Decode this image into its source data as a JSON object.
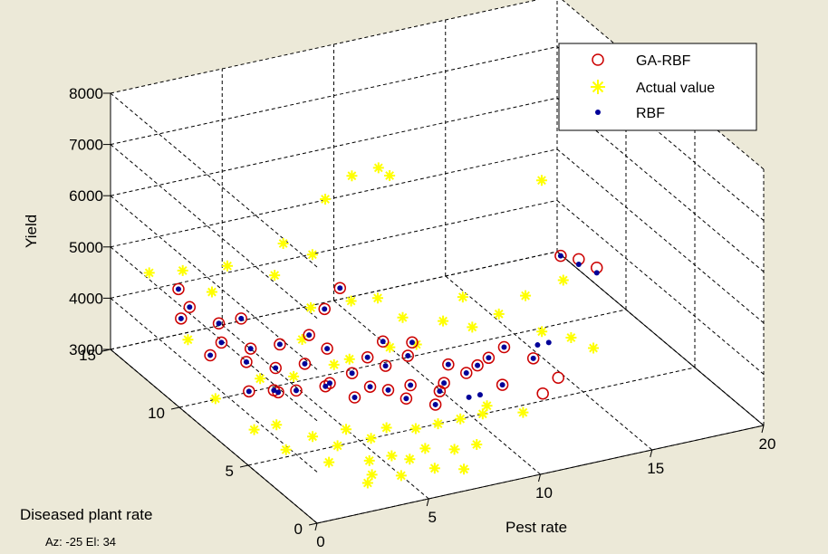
{
  "window": {
    "view_readout": "Az: -25 El: 34"
  },
  "colors": {
    "background": "#ece9d8",
    "axes_face": "#ffffff",
    "grid": "#000000",
    "ga_rbf": "#cc0000",
    "actual": "#ffff00",
    "rbf": "#000099"
  },
  "chart_data": {
    "type": "scatter",
    "projection": "3d",
    "view": {
      "azimuth": -25,
      "elevation": 34
    },
    "title": "",
    "xlabel": "Pest rate",
    "ylabel": "Diseased plant rate",
    "zlabel": "Yield",
    "xlim": [
      0,
      20
    ],
    "ylim": [
      0,
      15
    ],
    "zlim": [
      3000,
      8000
    ],
    "xticks": [
      0,
      5,
      10,
      15,
      20
    ],
    "yticks": [
      0,
      5,
      10,
      15
    ],
    "zticks": [
      3000,
      4000,
      5000,
      6000,
      7000,
      8000
    ],
    "grid": true,
    "legend_position": "top-right",
    "series": [
      {
        "name": "GA-RBF",
        "marker": "circle",
        "color": "#cc0000",
        "points": [
          [
            1.0,
            11.5,
            4300
          ],
          [
            1.5,
            12.5,
            4600
          ],
          [
            2.0,
            11.0,
            3600
          ],
          [
            2.5,
            11.0,
            3800
          ],
          [
            3.0,
            10.0,
            3600
          ],
          [
            3.5,
            10.5,
            3700
          ],
          [
            4.0,
            9.5,
            3500
          ],
          [
            4.5,
            10.0,
            3800
          ],
          [
            2.5,
            9.0,
            3300
          ],
          [
            3.5,
            8.5,
            3300
          ],
          [
            3.0,
            8.0,
            3500
          ],
          [
            4.0,
            8.0,
            3400
          ],
          [
            5.0,
            9.0,
            3600
          ],
          [
            5.5,
            9.5,
            4000
          ],
          [
            6.0,
            9.0,
            3800
          ],
          [
            6.5,
            10.0,
            4300
          ],
          [
            7.5,
            10.5,
            4500
          ],
          [
            5.0,
            7.5,
            3500
          ],
          [
            5.5,
            8.0,
            3400
          ],
          [
            6.0,
            7.0,
            3300
          ],
          [
            6.5,
            8.0,
            3500
          ],
          [
            7.0,
            7.5,
            3300
          ],
          [
            7.5,
            8.5,
            3600
          ],
          [
            8.0,
            8.0,
            3500
          ],
          [
            8.5,
            9.0,
            3700
          ],
          [
            9.0,
            8.0,
            3600
          ],
          [
            9.5,
            8.5,
            3700
          ],
          [
            7.5,
            7.0,
            3300
          ],
          [
            8.0,
            6.5,
            3200
          ],
          [
            8.5,
            7.0,
            3300
          ],
          [
            9.0,
            6.0,
            3100
          ],
          [
            9.5,
            6.5,
            3200
          ],
          [
            10.0,
            7.0,
            3200
          ],
          [
            10.5,
            7.5,
            3400
          ],
          [
            11.0,
            7.0,
            3300
          ],
          [
            11.5,
            7.0,
            3400
          ],
          [
            12.0,
            7.0,
            3500
          ],
          [
            12.0,
            6.0,
            3200
          ],
          [
            13.0,
            7.5,
            3500
          ],
          [
            14.0,
            7.0,
            3300
          ],
          [
            13.5,
            5.5,
            3000
          ],
          [
            14.5,
            6.0,
            3100
          ],
          [
            18.0,
            11.5,
            3900
          ],
          [
            18.5,
            11.0,
            3900
          ],
          [
            19.0,
            10.5,
            3800
          ],
          [
            4.0,
            12.0,
            3900
          ],
          [
            3.0,
            12.0,
            3900
          ],
          [
            2.0,
            12.5,
            4200
          ]
        ]
      },
      {
        "name": "Actual value",
        "marker": "star",
        "color": "#ffff00",
        "points": [
          [
            0.5,
            13.0,
            4900
          ],
          [
            1.0,
            11.0,
            4000
          ],
          [
            2.0,
            13.0,
            4800
          ],
          [
            3.0,
            12.5,
            4400
          ],
          [
            4.0,
            13.0,
            4700
          ],
          [
            5.5,
            12.0,
            4600
          ],
          [
            6.5,
            13.0,
            4900
          ],
          [
            7.5,
            12.5,
            4700
          ],
          [
            9.0,
            14.0,
            5300
          ],
          [
            10.5,
            14.5,
            5500
          ],
          [
            12.0,
            15.0,
            5400
          ],
          [
            12.5,
            15.0,
            5200
          ],
          [
            3.0,
            9.0,
            3500
          ],
          [
            4.5,
            9.0,
            3400
          ],
          [
            5.5,
            10.0,
            3800
          ],
          [
            6.5,
            11.0,
            4100
          ],
          [
            8.0,
            10.5,
            4200
          ],
          [
            9.5,
            11.0,
            4000
          ],
          [
            10.0,
            10.0,
            3800
          ],
          [
            11.5,
            9.5,
            3700
          ],
          [
            12.5,
            9.0,
            3600
          ],
          [
            14.0,
            9.5,
            3600
          ],
          [
            15.0,
            8.0,
            3500
          ],
          [
            16.0,
            7.5,
            3400
          ],
          [
            2.5,
            7.0,
            3100
          ],
          [
            3.5,
            6.0,
            3000
          ],
          [
            4.0,
            5.0,
            3000
          ],
          [
            5.0,
            6.0,
            3000
          ],
          [
            5.5,
            5.0,
            3000
          ],
          [
            6.5,
            5.5,
            3000
          ],
          [
            7.5,
            5.0,
            3000
          ],
          [
            8.5,
            5.0,
            3000
          ],
          [
            9.5,
            5.0,
            3000
          ],
          [
            10.5,
            5.0,
            3000
          ],
          [
            11.0,
            5.5,
            3000
          ],
          [
            12.0,
            4.5,
            3000
          ],
          [
            3.0,
            4.0,
            3000
          ],
          [
            4.5,
            3.5,
            3000
          ],
          [
            5.5,
            3.5,
            3000
          ],
          [
            6.0,
            3.0,
            3000
          ],
          [
            7.0,
            3.5,
            3000
          ],
          [
            8.0,
            3.0,
            3000
          ],
          [
            9.0,
            3.0,
            3000
          ],
          [
            4.0,
            2.5,
            3000
          ],
          [
            5.0,
            2.0,
            3000
          ],
          [
            6.5,
            2.0,
            3000
          ],
          [
            3.5,
            2.0,
            3000
          ],
          [
            7.5,
            1.5,
            3000
          ],
          [
            2.0,
            5.5,
            3000
          ],
          [
            1.5,
            7.0,
            3100
          ],
          [
            1.0,
            9.0,
            3300
          ],
          [
            6.0,
            8.5,
            3600
          ],
          [
            7.0,
            9.0,
            3500
          ],
          [
            8.5,
            8.5,
            3700
          ],
          [
            10.0,
            9.0,
            3500
          ],
          [
            13.0,
            10.5,
            3800
          ],
          [
            15.5,
            10.0,
            3700
          ],
          [
            17.5,
            10.5,
            3700
          ],
          [
            19.0,
            14.5,
            4600
          ],
          [
            17.0,
            7.5,
            3100
          ]
        ]
      },
      {
        "name": "RBF",
        "marker": "dot",
        "color": "#000099",
        "points": [
          [
            1.0,
            11.5,
            4300
          ],
          [
            1.5,
            12.5,
            4600
          ],
          [
            2.0,
            11.0,
            3600
          ],
          [
            2.5,
            11.0,
            3800
          ],
          [
            3.0,
            10.0,
            3600
          ],
          [
            3.5,
            10.5,
            3700
          ],
          [
            4.0,
            9.5,
            3500
          ],
          [
            4.5,
            10.0,
            3800
          ],
          [
            2.5,
            9.0,
            3300
          ],
          [
            3.5,
            8.5,
            3300
          ],
          [
            3.0,
            8.0,
            3500
          ],
          [
            4.0,
            8.0,
            3400
          ],
          [
            5.0,
            9.0,
            3600
          ],
          [
            5.5,
            9.5,
            4000
          ],
          [
            6.0,
            9.0,
            3800
          ],
          [
            6.5,
            10.0,
            4300
          ],
          [
            7.5,
            10.5,
            4500
          ],
          [
            5.0,
            7.5,
            3500
          ],
          [
            5.5,
            8.0,
            3400
          ],
          [
            6.0,
            7.0,
            3300
          ],
          [
            6.5,
            8.0,
            3500
          ],
          [
            7.0,
            7.5,
            3300
          ],
          [
            7.5,
            8.5,
            3600
          ],
          [
            8.0,
            8.0,
            3500
          ],
          [
            8.5,
            9.0,
            3700
          ],
          [
            9.0,
            8.0,
            3600
          ],
          [
            9.5,
            8.5,
            3700
          ],
          [
            7.5,
            7.0,
            3300
          ],
          [
            8.0,
            6.5,
            3200
          ],
          [
            8.5,
            7.0,
            3300
          ],
          [
            9.0,
            6.0,
            3100
          ],
          [
            9.5,
            6.5,
            3200
          ],
          [
            10.0,
            7.0,
            3200
          ],
          [
            10.5,
            7.5,
            3400
          ],
          [
            11.0,
            7.0,
            3300
          ],
          [
            11.5,
            7.0,
            3400
          ],
          [
            12.0,
            7.0,
            3500
          ],
          [
            12.0,
            6.0,
            3200
          ],
          [
            13.0,
            7.5,
            3500
          ],
          [
            14.0,
            7.0,
            3300
          ],
          [
            14.5,
            7.5,
            3400
          ],
          [
            15.0,
            7.5,
            3400
          ],
          [
            18.0,
            11.5,
            3900
          ],
          [
            18.5,
            11.0,
            3800
          ],
          [
            19.0,
            10.5,
            3700
          ],
          [
            4.0,
            12.0,
            3900
          ],
          [
            3.0,
            12.0,
            3900
          ],
          [
            2.0,
            12.5,
            4200
          ],
          [
            10.5,
            6.0,
            3100
          ],
          [
            11.0,
            6.0,
            3100
          ]
        ]
      }
    ]
  }
}
